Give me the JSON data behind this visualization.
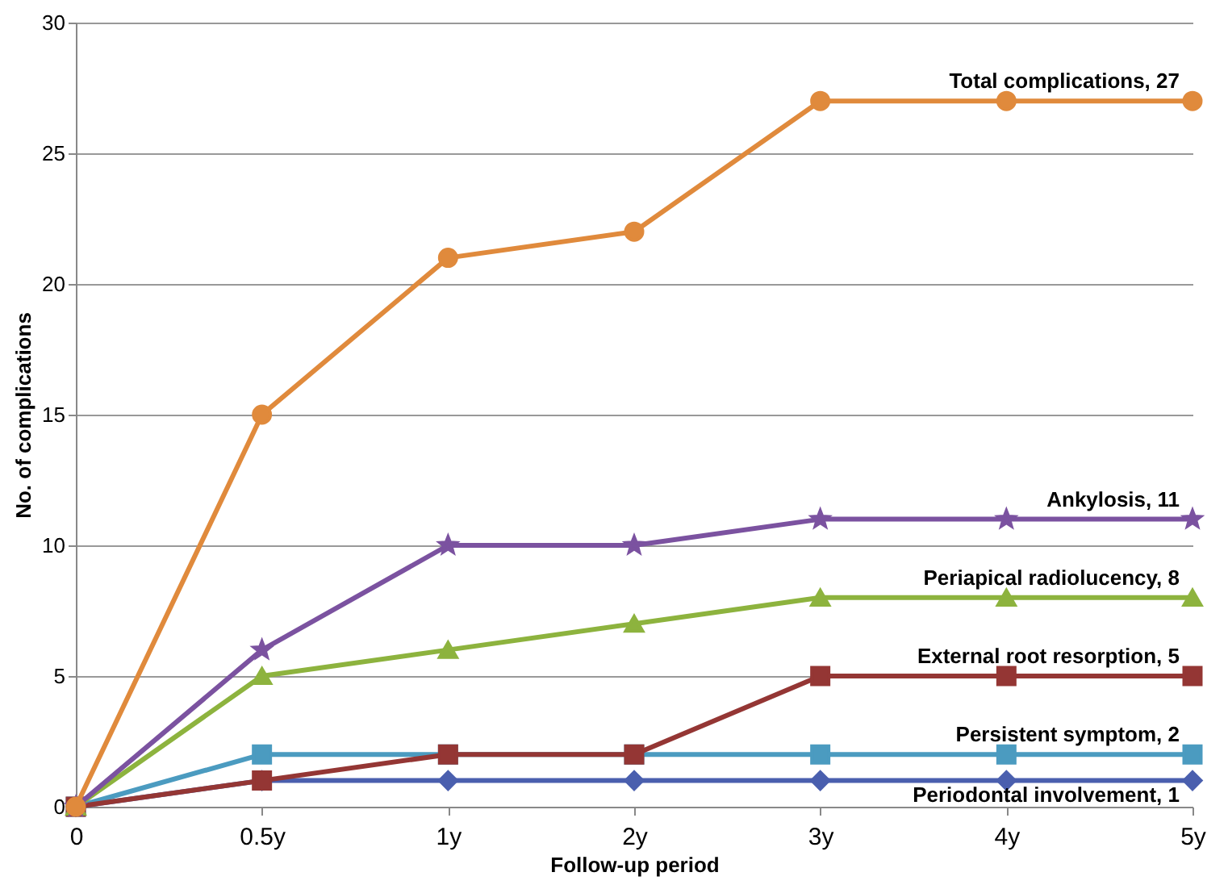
{
  "chart_data": {
    "type": "line",
    "xlabel": "Follow-up period",
    "ylabel": "No. of complications",
    "categories": [
      "0",
      "0.5y",
      "1y",
      "2y",
      "3y",
      "4y",
      "5y"
    ],
    "ylim": [
      0,
      30
    ],
    "yticks": [
      0,
      5,
      10,
      15,
      20,
      25,
      30
    ],
    "grid": "y",
    "legend": false,
    "line_style": "solid",
    "series": [
      {
        "name": "Total complications, 27",
        "color": "#e08a3c",
        "marker": "circle",
        "values": [
          0,
          15,
          21,
          22,
          27,
          27,
          27
        ]
      },
      {
        "name": "Ankylosis, 11",
        "color": "#7b52a0",
        "marker": "star",
        "values": [
          0,
          6,
          10,
          10,
          11,
          11,
          11
        ]
      },
      {
        "name": "Periapical radiolucency, 8",
        "color": "#8db33e",
        "marker": "triangle",
        "values": [
          0,
          5,
          6,
          7,
          8,
          8,
          8
        ]
      },
      {
        "name": "External root resorption, 5",
        "color": "#943634",
        "marker": "square",
        "values": [
          0,
          1,
          2,
          2,
          5,
          5,
          5
        ]
      },
      {
        "name": "Persistent symptom, 2",
        "color": "#4b9bc0",
        "marker": "square",
        "values": [
          0,
          2,
          2,
          2,
          2,
          2,
          2
        ]
      },
      {
        "name": "Periodontal involvement, 1",
        "color": "#4a5fae",
        "marker": "diamond",
        "values": [
          0,
          1,
          1,
          1,
          1,
          1,
          1
        ]
      }
    ]
  }
}
